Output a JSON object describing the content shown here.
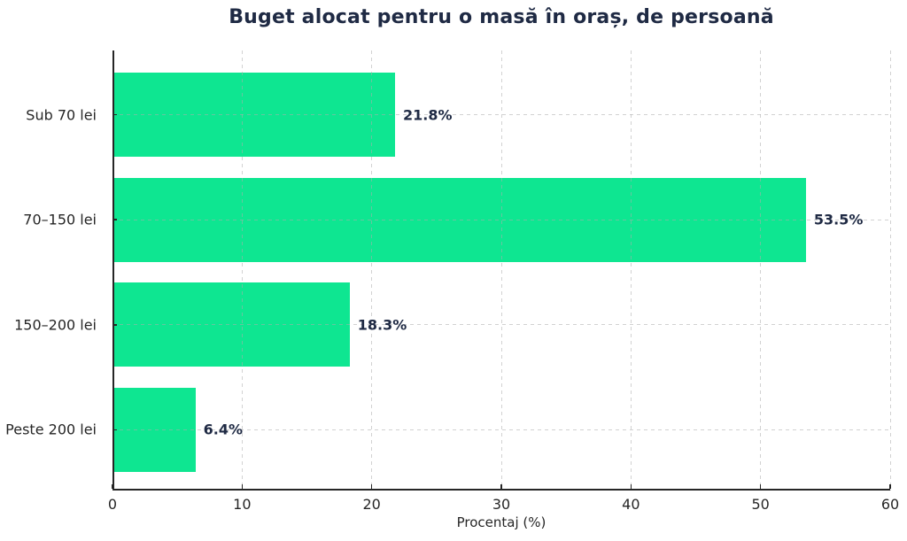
{
  "chart_data": {
    "type": "bar",
    "orientation": "horizontal",
    "title": "Buget alocat pentru o masă în oraș, de persoană",
    "xlabel": "Procentaj (%)",
    "ylabel": "",
    "categories": [
      "Sub 70 lei",
      "70–150 lei",
      "150–200 lei",
      "Peste 200 lei"
    ],
    "values": [
      21.8,
      53.5,
      18.3,
      6.4
    ],
    "value_labels": [
      "21.8%",
      "53.5%",
      "18.3%",
      "6.4%"
    ],
    "xticks": [
      0,
      10,
      20,
      30,
      40,
      50,
      60
    ],
    "xlim": [
      0,
      60
    ],
    "grid": true,
    "grid_style": "dashed",
    "legend": "none",
    "colors": {
      "bar": "#0EE691",
      "title": "#1F2A44",
      "value_label": "#1F2A44",
      "tick_label": "#262626",
      "spine": "#262626",
      "grid_line": "#ACACAC",
      "background": "#FFFFFF"
    }
  }
}
